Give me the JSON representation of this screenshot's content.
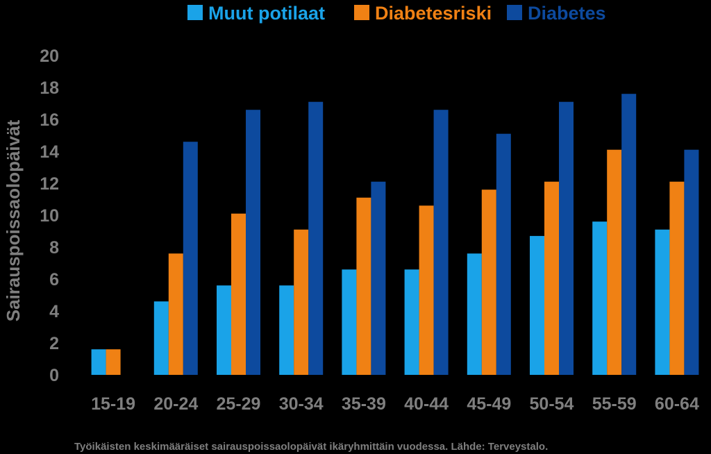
{
  "chart_data": {
    "type": "bar",
    "categories": [
      "15-19",
      "20-24",
      "25-29",
      "30-34",
      "35-39",
      "40-44",
      "45-49",
      "50-54",
      "55-59",
      "60-64"
    ],
    "series": [
      {
        "name": "Muut potilaat",
        "color": "#1aa3e8",
        "values": [
          1.6,
          4.6,
          5.6,
          5.6,
          6.6,
          6.6,
          7.6,
          8.7,
          9.6,
          9.1
        ]
      },
      {
        "name": "Diabetesriski",
        "color": "#f08114",
        "values": [
          1.6,
          7.6,
          10.1,
          9.1,
          11.1,
          10.6,
          11.6,
          12.1,
          14.1,
          12.1
        ]
      },
      {
        "name": "Diabetes",
        "color": "#0d4a9e",
        "values": [
          0,
          14.6,
          16.6,
          17.1,
          12.1,
          16.6,
          15.1,
          17.1,
          17.6,
          14.1
        ]
      }
    ],
    "ylabel": "Sairauspoissaolopäivät",
    "xlabel": "",
    "ylim": [
      0,
      20
    ],
    "yticks": [
      0,
      2,
      4,
      6,
      8,
      10,
      12,
      14,
      16,
      18,
      20
    ],
    "grid": false,
    "legend_position": "top-right"
  },
  "caption": "Työikäisten keskimääräiset sairauspoissaolopäivät ikäryhmittäin vuodessa. Lähde: Terveystalo."
}
